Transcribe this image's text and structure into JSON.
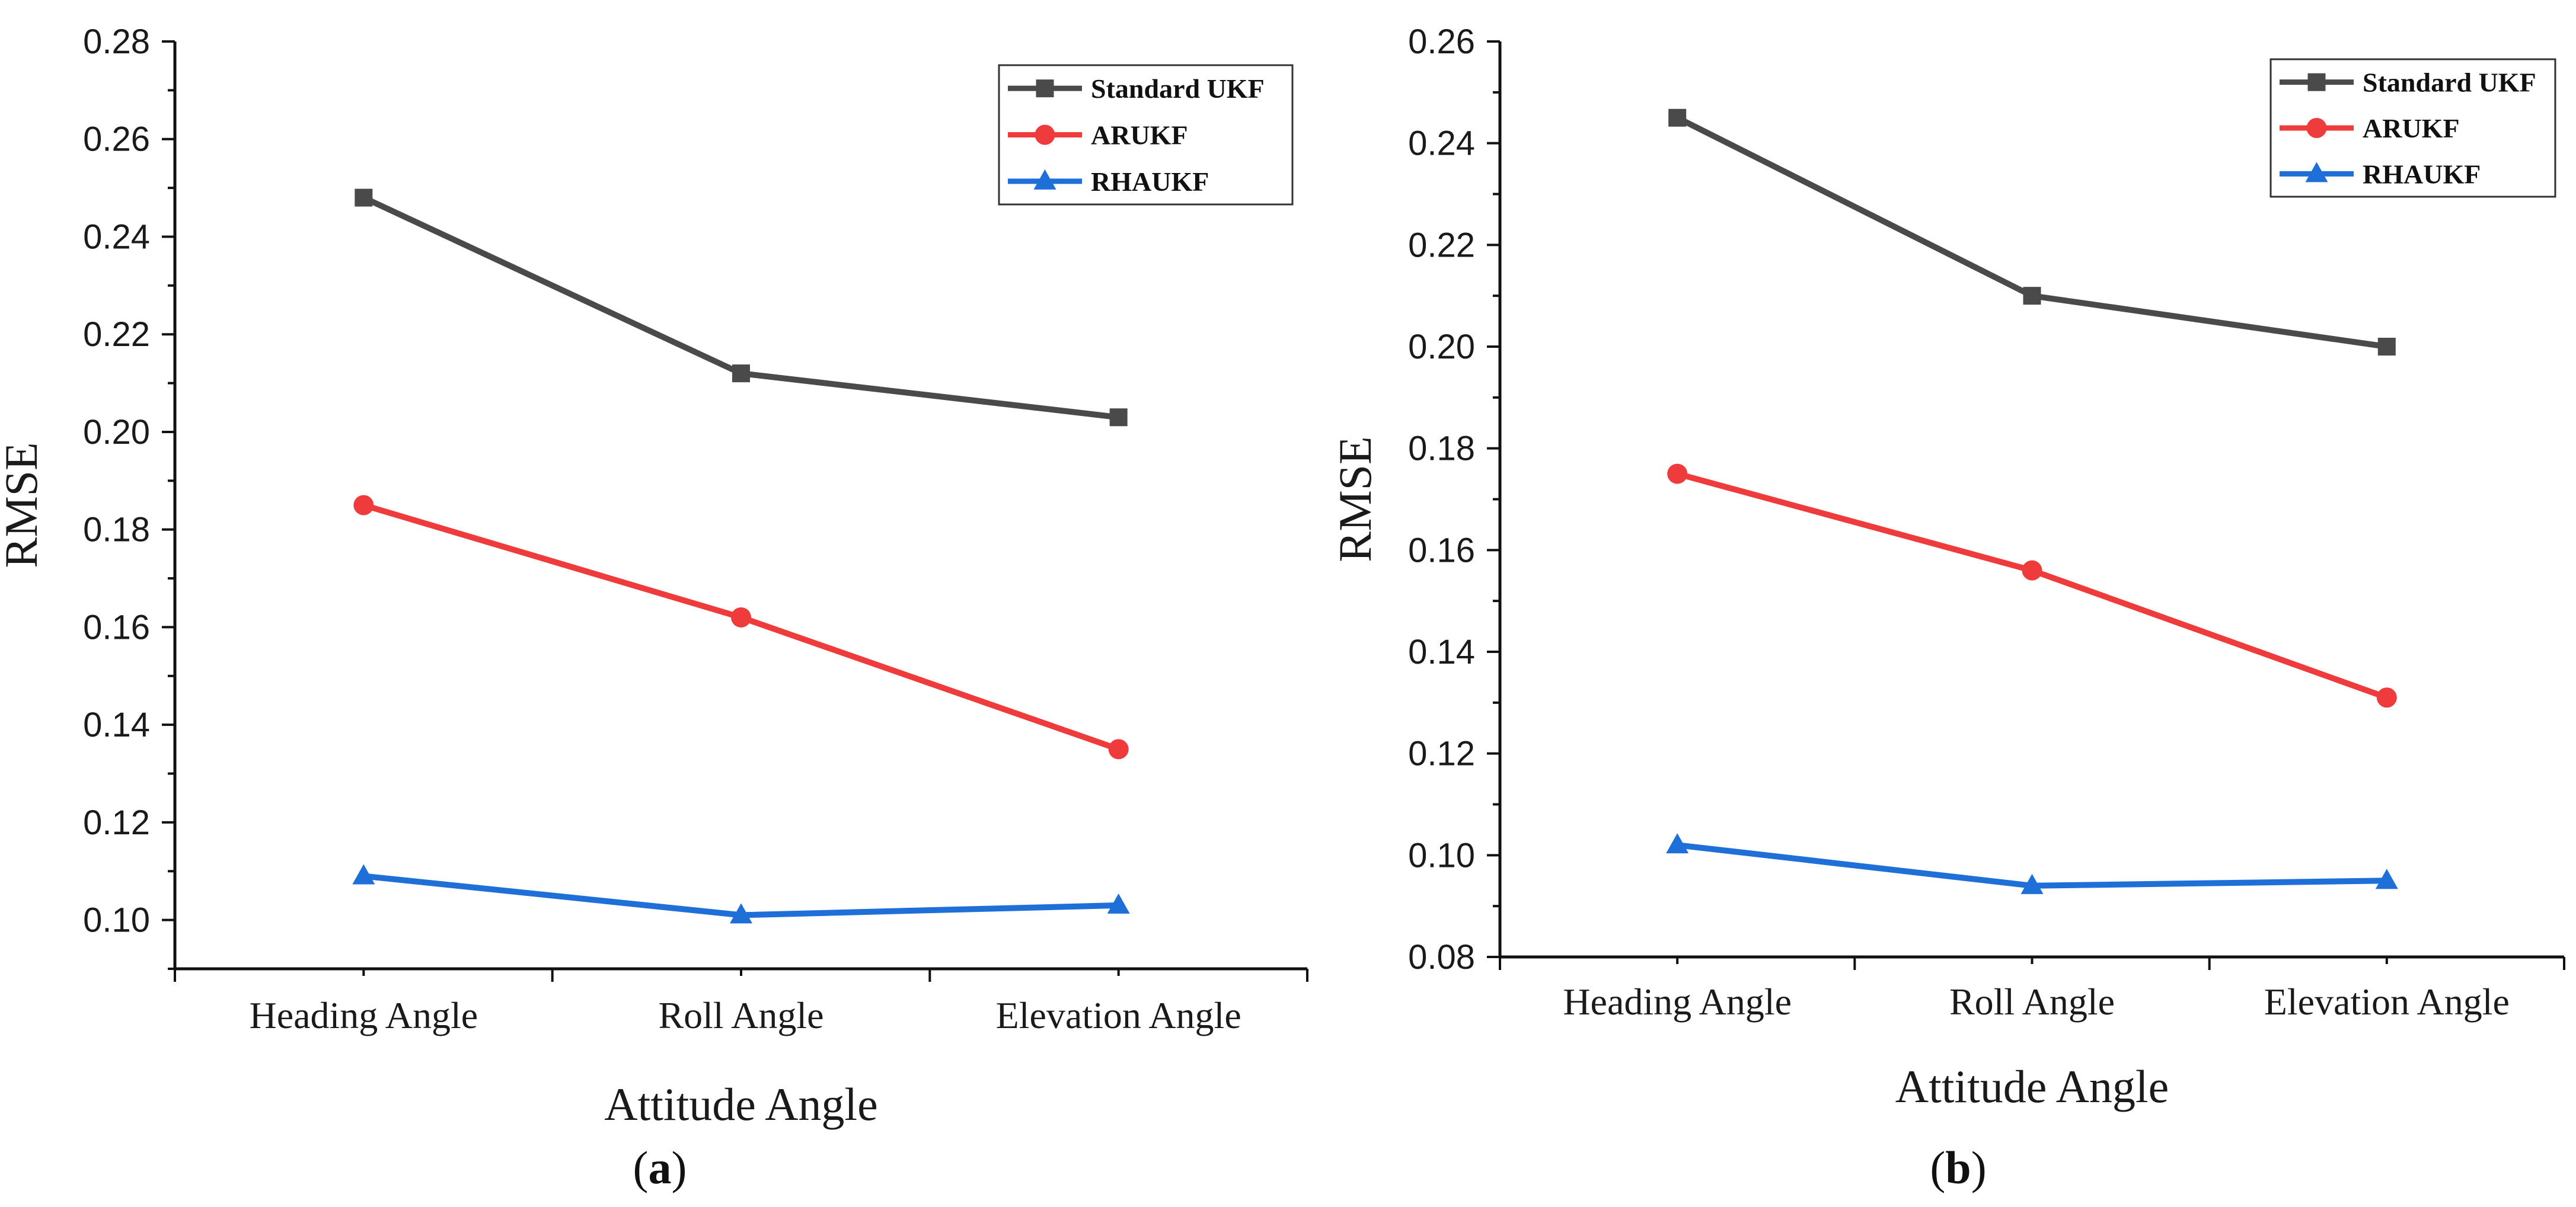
{
  "colors": {
    "standard_ukf": "#4a4a4a",
    "arukf": "#ef3b3b",
    "rhaukf": "#1f6fd8",
    "axis": "#111111"
  },
  "legend_order": [
    "Standard UKF",
    "ARUKF",
    "RHAUKF"
  ],
  "chart_data": [
    {
      "type": "line",
      "panel": "a",
      "categories": [
        "Heading Angle",
        "Roll Angle",
        "Elevation Angle"
      ],
      "xlabel": "Attitude Angle",
      "ylabel": "RMSE",
      "ylim": [
        0.09,
        0.28
      ],
      "yticks": [
        "0.10",
        "0.12",
        "0.14",
        "0.16",
        "0.18",
        "0.20",
        "0.22",
        "0.24",
        "0.26",
        "0.28"
      ],
      "legend_position": "top-right",
      "grid": false,
      "series": [
        {
          "name": "Standard UKF",
          "marker": "square",
          "values": [
            0.248,
            0.212,
            0.203
          ]
        },
        {
          "name": "ARUKF",
          "marker": "circle",
          "values": [
            0.185,
            0.162,
            0.135
          ]
        },
        {
          "name": "RHAUKF",
          "marker": "triangle",
          "values": [
            0.109,
            0.101,
            0.103
          ]
        }
      ]
    },
    {
      "type": "line",
      "panel": "b",
      "categories": [
        "Heading Angle",
        "Roll Angle",
        "Elevation Angle"
      ],
      "xlabel": "Attitude Angle",
      "ylabel": "RMSE",
      "ylim": [
        0.08,
        0.26
      ],
      "yticks": [
        "0.08",
        "0.10",
        "0.12",
        "0.14",
        "0.16",
        "0.18",
        "0.20",
        "0.22",
        "0.24",
        "0.26"
      ],
      "legend_position": "top-right",
      "grid": false,
      "series": [
        {
          "name": "Standard UKF",
          "marker": "square",
          "values": [
            0.245,
            0.21,
            0.2
          ]
        },
        {
          "name": "ARUKF",
          "marker": "circle",
          "values": [
            0.175,
            0.156,
            0.131
          ]
        },
        {
          "name": "RHAUKF",
          "marker": "triangle",
          "values": [
            0.102,
            0.094,
            0.095
          ]
        }
      ]
    }
  ],
  "panel_labels": [
    {
      "open": "(",
      "letter": "a",
      "close": ")"
    },
    {
      "open": "(",
      "letter": "b",
      "close": ")"
    }
  ]
}
